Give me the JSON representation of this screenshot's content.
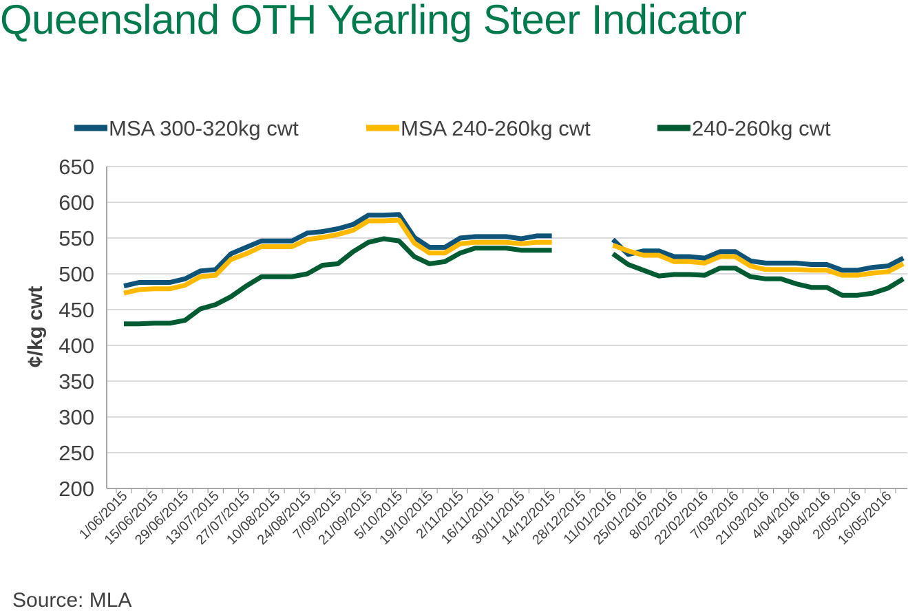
{
  "chart_data": {
    "type": "line",
    "title": "Queensland OTH Yearling Steer Indicator",
    "ylabel": "¢/kg cwt",
    "xlabel": "",
    "ylim": [
      200,
      650
    ],
    "yticks": [
      200,
      250,
      300,
      350,
      400,
      450,
      500,
      550,
      600,
      650
    ],
    "grid": true,
    "legend_position": "top",
    "source": "Source: MLA",
    "x_labels": [
      "1/06/2015",
      "15/06/2015",
      "29/06/2015",
      "13/07/2015",
      "27/07/2015",
      "10/08/2015",
      "24/08/2015",
      "7/09/2015",
      "21/09/2015",
      "5/10/2015",
      "19/10/2015",
      "2/11/2015",
      "16/11/2015",
      "30/11/2015",
      "14/12/2015",
      "28/12/2015",
      "11/01/2016",
      "25/01/2016",
      "8/02/2016",
      "22/02/2016",
      "7/03/2016",
      "21/03/2016",
      "4/04/2016",
      "18/04/2016",
      "2/05/2016",
      "16/05/2016"
    ],
    "x": [
      "1/06/2015",
      "8/06/2015",
      "15/06/2015",
      "22/06/2015",
      "29/06/2015",
      "6/07/2015",
      "13/07/2015",
      "20/07/2015",
      "27/07/2015",
      "3/08/2015",
      "10/08/2015",
      "17/08/2015",
      "24/08/2015",
      "31/08/2015",
      "7/09/2015",
      "14/09/2015",
      "21/09/2015",
      "28/09/2015",
      "5/10/2015",
      "12/10/2015",
      "19/10/2015",
      "26/10/2015",
      "2/11/2015",
      "9/11/2015",
      "16/11/2015",
      "23/11/2015",
      "30/11/2015",
      "7/12/2015",
      "14/12/2015",
      "21/12/2015",
      "28/12/2015",
      "4/01/2016",
      "11/01/2016",
      "18/01/2016",
      "25/01/2016",
      "1/02/2016",
      "8/02/2016",
      "15/02/2016",
      "22/02/2016",
      "29/02/2016",
      "7/03/2016",
      "14/03/2016",
      "21/03/2016",
      "28/03/2016",
      "4/04/2016",
      "11/04/2016",
      "18/04/2016",
      "25/04/2016",
      "2/05/2016",
      "9/05/2016",
      "16/05/2016",
      "23/05/2016"
    ],
    "series": [
      {
        "name": "MSA 300-320kg cwt",
        "color": "#0F5478",
        "values": [
          483,
          488,
          488,
          488,
          493,
          504,
          506,
          528,
          537,
          546,
          546,
          546,
          557,
          559,
          563,
          569,
          582,
          582,
          583,
          551,
          537,
          537,
          550,
          552,
          552,
          552,
          549,
          553,
          553,
          null,
          null,
          null,
          548,
          527,
          532,
          532,
          524,
          524,
          522,
          531,
          531,
          518,
          515,
          515,
          515,
          513,
          513,
          505,
          505,
          509,
          511,
          522
        ]
      },
      {
        "name": "MSA 240-260kg cwt",
        "color": "#FFBA00",
        "values": [
          473,
          478,
          479,
          479,
          484,
          496,
          498,
          520,
          528,
          538,
          538,
          538,
          548,
          551,
          555,
          561,
          574,
          574,
          575,
          543,
          529,
          529,
          542,
          544,
          544,
          544,
          542,
          544,
          544,
          null,
          null,
          null,
          540,
          532,
          526,
          526,
          517,
          517,
          515,
          524,
          524,
          511,
          506,
          506,
          506,
          505,
          505,
          498,
          498,
          501,
          503,
          514
        ]
      },
      {
        "name": "240-260kg cwt",
        "color": "#005A32",
        "values": [
          430,
          430,
          431,
          431,
          435,
          451,
          457,
          468,
          483,
          496,
          496,
          496,
          500,
          512,
          514,
          531,
          544,
          549,
          546,
          524,
          514,
          517,
          529,
          536,
          536,
          536,
          533,
          533,
          533,
          null,
          null,
          null,
          528,
          513,
          505,
          497,
          499,
          499,
          498,
          508,
          508,
          496,
          493,
          493,
          486,
          481,
          481,
          470,
          470,
          473,
          480,
          493
        ]
      }
    ]
  }
}
